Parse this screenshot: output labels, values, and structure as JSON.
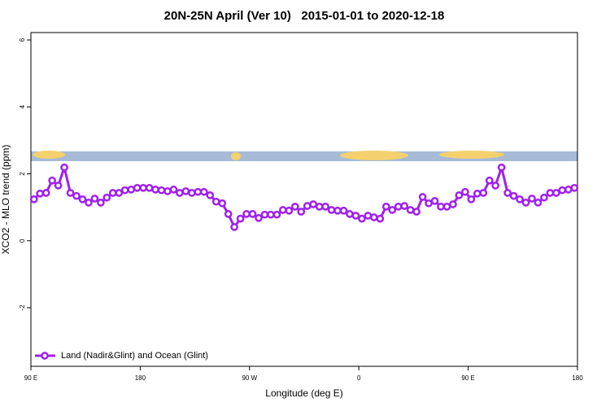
{
  "chart_data": {
    "type": "line",
    "title": "20N-25N April (Ver 10)   2015-01-01 to 2020-12-18",
    "x_label": "Longitude (deg E)",
    "y_label": "XCO2 - MLO trend (ppm)",
    "x": [
      92.5,
      97.5,
      102.5,
      107.5,
      112.5,
      117.5,
      122.5,
      127.5,
      132.5,
      137.5,
      142.5,
      147.5,
      152.5,
      157.5,
      162.5,
      167.5,
      172.5,
      177.5,
      182.5,
      187.5,
      192.5,
      197.5,
      202.5,
      207.5,
      212.5,
      217.5,
      222.5,
      227.5,
      232.5,
      237.5,
      242.5,
      247.5,
      252.5,
      257.5,
      262.5,
      267.5,
      272.5,
      277.5,
      282.5,
      287.5,
      292.5,
      297.5,
      302.5,
      307.5,
      312.5,
      317.5,
      322.5,
      327.5,
      332.5,
      337.5,
      342.5,
      347.5,
      352.5,
      357.5,
      362.5,
      367.5,
      372.5,
      377.5,
      382.5,
      387.5,
      392.5,
      397.5,
      402.5,
      407.5,
      412.5,
      417.5,
      422.5,
      427.5,
      432.5,
      437.5,
      442.5,
      447.5,
      452.5,
      457.5,
      462.5,
      467.5,
      472.5,
      477.5,
      482.5,
      487.5,
      492.5,
      497.5,
      502.5,
      507.5,
      512.5,
      517.5,
      522.5,
      527.5,
      532.5,
      537.5
    ],
    "series": [
      {
        "name": "Land (Nadir&Glint) and Ocean (Glint)",
        "color": "#a020f0",
        "values": [
          1.24,
          1.41,
          1.43,
          1.8,
          1.65,
          2.19,
          1.43,
          1.34,
          1.24,
          1.14,
          1.26,
          1.14,
          1.29,
          1.43,
          1.43,
          1.51,
          1.53,
          1.58,
          1.58,
          1.58,
          1.53,
          1.51,
          1.48,
          1.53,
          1.43,
          1.48,
          1.43,
          1.46,
          1.46,
          1.36,
          1.17,
          1.12,
          0.8,
          0.41,
          0.66,
          0.8,
          0.8,
          0.68,
          0.78,
          0.78,
          0.78,
          0.92,
          0.9,
          1.02,
          0.87,
          1.04,
          1.09,
          1.02,
          1.02,
          0.92,
          0.9,
          0.9,
          0.8,
          0.75,
          0.66,
          0.75,
          0.7,
          0.66,
          1.02,
          0.92,
          1.02,
          1.04,
          0.92,
          0.87,
          1.31,
          1.12,
          1.19,
          1.02,
          1.02,
          1.09,
          1.36,
          1.46,
          1.24,
          1.41,
          1.43,
          1.8,
          1.65,
          2.19,
          1.43,
          1.34,
          1.24,
          1.14,
          1.26,
          1.14,
          1.29,
          1.43,
          1.43,
          1.51,
          1.53,
          1.58
        ]
      }
    ],
    "xlim": [
      90,
      540
    ],
    "xticks": [
      {
        "value": 90,
        "label": "90 E"
      },
      {
        "value": 180,
        "label": "180"
      },
      {
        "value": 270,
        "label": "90 W"
      },
      {
        "value": 360,
        "label": "0"
      },
      {
        "value": 450,
        "label": "90 E"
      },
      {
        "value": 540,
        "label": "180"
      }
    ],
    "ylim": [
      -3.75,
      6.22
    ],
    "yticks": [
      -2,
      0,
      2,
      4,
      6
    ],
    "legend": "bottom-left"
  }
}
